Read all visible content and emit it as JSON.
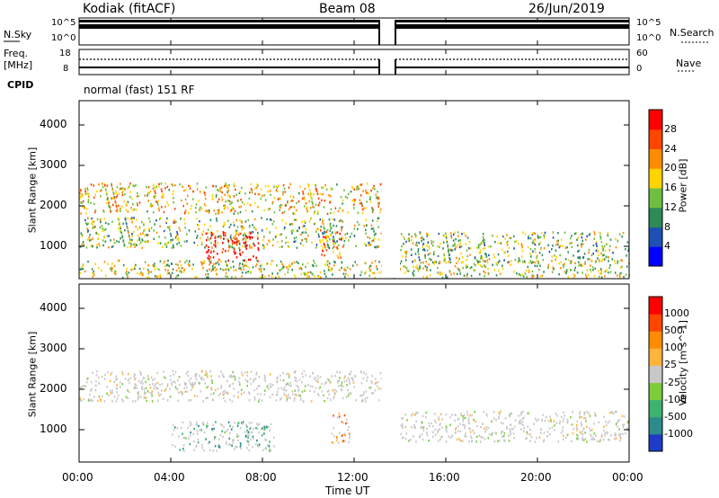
{
  "header": {
    "site": "Kodiak (fitACF)",
    "beam": "Beam 08",
    "date": "26/Jun/2019"
  },
  "top_panels": {
    "nsky_label": "N.Sky",
    "nsearch_label": "N.Search",
    "noise_ticks_left": [
      "10^5",
      "10^0"
    ],
    "noise_ticks_right": [
      "10^5",
      "10^0"
    ],
    "freq_label": "Freq.",
    "freq_unit": "[MHz]",
    "freq_ticks": [
      "18",
      "8"
    ],
    "nave_label": "Nave",
    "nave_ticks": [
      "60",
      "0"
    ],
    "cpid_label": "CPID",
    "cpid_text": "normal (fast) 151 RF"
  },
  "chart_data": [
    {
      "type": "heatmap",
      "name": "power",
      "ylabel": "Slant Range [km]",
      "yticks": [
        "1000",
        "2000",
        "3000",
        "4000"
      ],
      "ylim": [
        200,
        4600
      ],
      "xlim_hours": [
        0,
        24
      ],
      "data_gap_hours": [
        13.2,
        14
      ],
      "colorbar": {
        "label": "Power [dB]",
        "ticks": [
          "4",
          "8",
          "12",
          "16",
          "20",
          "24",
          "28"
        ],
        "colors": [
          "#0000ff",
          "#1e50b4",
          "#2e8b57",
          "#6fbf3f",
          "#ffd400",
          "#ff8c00",
          "#ff4500",
          "#ff0000"
        ]
      },
      "regions": [
        {
          "start_h": 0.0,
          "end_h": 13.2,
          "range_km": 2200,
          "level": 0.6
        },
        {
          "start_h": 0.0,
          "end_h": 13.2,
          "range_km": 1350,
          "level": 0.45
        },
        {
          "start_h": 5.5,
          "end_h": 7.8,
          "range_km": 1000,
          "level": 0.95
        },
        {
          "start_h": 10.5,
          "end_h": 11.5,
          "range_km": 1100,
          "level": 0.7
        },
        {
          "start_h": 14.0,
          "end_h": 24.0,
          "range_km": 1000,
          "level": 0.45
        },
        {
          "start_h": 0.0,
          "end_h": 24.0,
          "range_km": 300,
          "level": 0.5
        }
      ]
    },
    {
      "type": "heatmap",
      "name": "velocity",
      "ylabel": "Slant Range [km]",
      "yticks": [
        "1000",
        "2000",
        "3000",
        "4000"
      ],
      "ylim": [
        200,
        4600
      ],
      "xlim_hours": [
        0,
        24
      ],
      "xlabel": "Time UT",
      "xticks": [
        "00:00",
        "04:00",
        "08:00",
        "12:00",
        "16:00",
        "20:00",
        "00:00"
      ],
      "colorbar": {
        "label": "Velocity [m s^-1]",
        "ticks": [
          "1000",
          "500",
          "100",
          "25",
          "-25",
          "-100",
          "-500",
          "-1000"
        ],
        "colors": [
          "#1e3cc8",
          "#2e8b8b",
          "#3cb371",
          "#7ccd3c",
          "#c8c8c8",
          "#ffb43c",
          "#ff8c00",
          "#ff4500",
          "#ff0000"
        ]
      },
      "regions": [
        {
          "start_h": 0.0,
          "end_h": 13.2,
          "range_km": 2100,
          "level": 0.5
        },
        {
          "start_h": 4.0,
          "end_h": 8.5,
          "range_km": 850,
          "level": 0.25
        },
        {
          "start_h": 11.0,
          "end_h": 11.8,
          "range_km": 1050,
          "level": 0.75
        },
        {
          "start_h": 14.0,
          "end_h": 24.0,
          "range_km": 1100,
          "level": 0.5
        }
      ]
    }
  ]
}
